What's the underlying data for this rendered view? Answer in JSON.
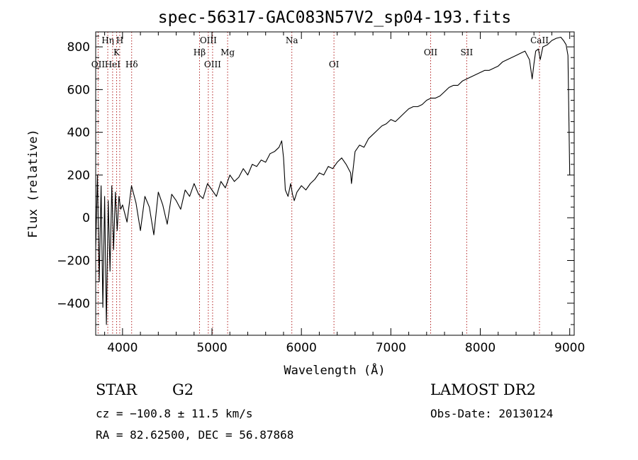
{
  "chart_data": {
    "type": "line",
    "title": "spec-56317-GAC083N57V2_sp04-193.fits",
    "xlabel": "Wavelength (Å)",
    "ylabel": "Flux (relative)",
    "xlim": [
      3700,
      9050
    ],
    "ylim": [
      -550,
      870
    ],
    "xticks": [
      4000,
      5000,
      6000,
      7000,
      8000,
      9000
    ],
    "yticks": [
      -400,
      -200,
      0,
      200,
      400,
      600,
      800
    ],
    "grid": false,
    "line_color": "#000000",
    "marker_color": "#b22222",
    "series": [
      {
        "x": [
          3700,
          3720,
          3740,
          3760,
          3780,
          3800,
          3820,
          3840,
          3860,
          3880,
          3900,
          3920,
          3940,
          3960,
          3980,
          4000,
          4050,
          4100,
          4150,
          4200,
          4250,
          4300,
          4350,
          4400,
          4450,
          4500,
          4550,
          4600,
          4650,
          4700,
          4750,
          4800,
          4850,
          4900,
          4950,
          5000,
          5050,
          5100,
          5150,
          5200,
          5250,
          5300,
          5350,
          5400,
          5450,
          5500,
          5550,
          5600,
          5650,
          5700,
          5750,
          5780,
          5800,
          5820,
          5850,
          5880,
          5900,
          5920,
          5950,
          6000,
          6050,
          6100,
          6150,
          6200,
          6250,
          6300,
          6350,
          6400,
          6450,
          6500,
          6550,
          6560,
          6600,
          6650,
          6700,
          6750,
          6800,
          6850,
          6900,
          6950,
          7000,
          7050,
          7100,
          7150,
          7200,
          7250,
          7300,
          7350,
          7400,
          7450,
          7500,
          7550,
          7600,
          7650,
          7700,
          7750,
          7800,
          7850,
          7900,
          7950,
          8000,
          8050,
          8100,
          8150,
          8200,
          8250,
          8300,
          8350,
          8400,
          8450,
          8500,
          8550,
          8580,
          8600,
          8620,
          8650,
          8670,
          8700,
          8750,
          8800,
          8850,
          8900,
          8930,
          8960,
          8980,
          9000
        ],
        "y": [
          -150,
          200,
          -300,
          150,
          -420,
          100,
          -500,
          80,
          -250,
          150,
          -150,
          120,
          -60,
          100,
          40,
          60,
          -20,
          150,
          70,
          -60,
          100,
          50,
          -80,
          120,
          60,
          -30,
          110,
          80,
          40,
          130,
          100,
          160,
          110,
          90,
          160,
          130,
          100,
          170,
          140,
          200,
          170,
          190,
          230,
          200,
          250,
          240,
          270,
          260,
          300,
          310,
          330,
          360,
          280,
          130,
          100,
          160,
          110,
          80,
          120,
          150,
          130,
          160,
          180,
          210,
          200,
          240,
          230,
          260,
          280,
          250,
          210,
          160,
          310,
          340,
          330,
          370,
          390,
          410,
          430,
          440,
          460,
          450,
          470,
          490,
          510,
          520,
          520,
          530,
          550,
          560,
          560,
          570,
          590,
          610,
          620,
          620,
          640,
          650,
          660,
          670,
          680,
          690,
          690,
          700,
          710,
          730,
          740,
          750,
          760,
          770,
          780,
          740,
          650,
          720,
          780,
          790,
          740,
          800,
          810,
          830,
          840,
          845,
          830,
          810,
          760,
          200
        ]
      }
    ],
    "lines": [
      {
        "wavelength": 3727,
        "label": "OII",
        "row": 3
      },
      {
        "wavelength": 3835,
        "label": "Hη",
        "row": 1
      },
      {
        "wavelength": 3889,
        "label": "HeI",
        "row": 3
      },
      {
        "wavelength": 3934,
        "label": "K",
        "row": 2
      },
      {
        "wavelength": 3969,
        "label": "H",
        "row": 1
      },
      {
        "wavelength": 4102,
        "label": "Hδ",
        "row": 3
      },
      {
        "wavelength": 4861,
        "label": "Hβ",
        "row": 2
      },
      {
        "wavelength": 4959,
        "label": "OIII",
        "row": 1
      },
      {
        "wavelength": 5007,
        "label": "OIII",
        "row": 3
      },
      {
        "wavelength": 5175,
        "label": "Mg",
        "row": 2
      },
      {
        "wavelength": 5893,
        "label": "Na",
        "row": 1
      },
      {
        "wavelength": 6364,
        "label": "OI",
        "row": 3
      },
      {
        "wavelength": 7445,
        "label": "OII",
        "row": 2
      },
      {
        "wavelength": 7848,
        "label": "SII",
        "row": 2
      },
      {
        "wavelength": 8662,
        "label": "CaII",
        "row": 1
      }
    ]
  },
  "info": {
    "object_class": "STAR",
    "subclass": "G2",
    "survey": "LAMOST DR2",
    "redshift": "cz = −100.8 ± 11.5 km/s",
    "obs_date": "Obs-Date: 20130124",
    "coordinates": "RA =  82.62500, DEC =  56.87868"
  }
}
